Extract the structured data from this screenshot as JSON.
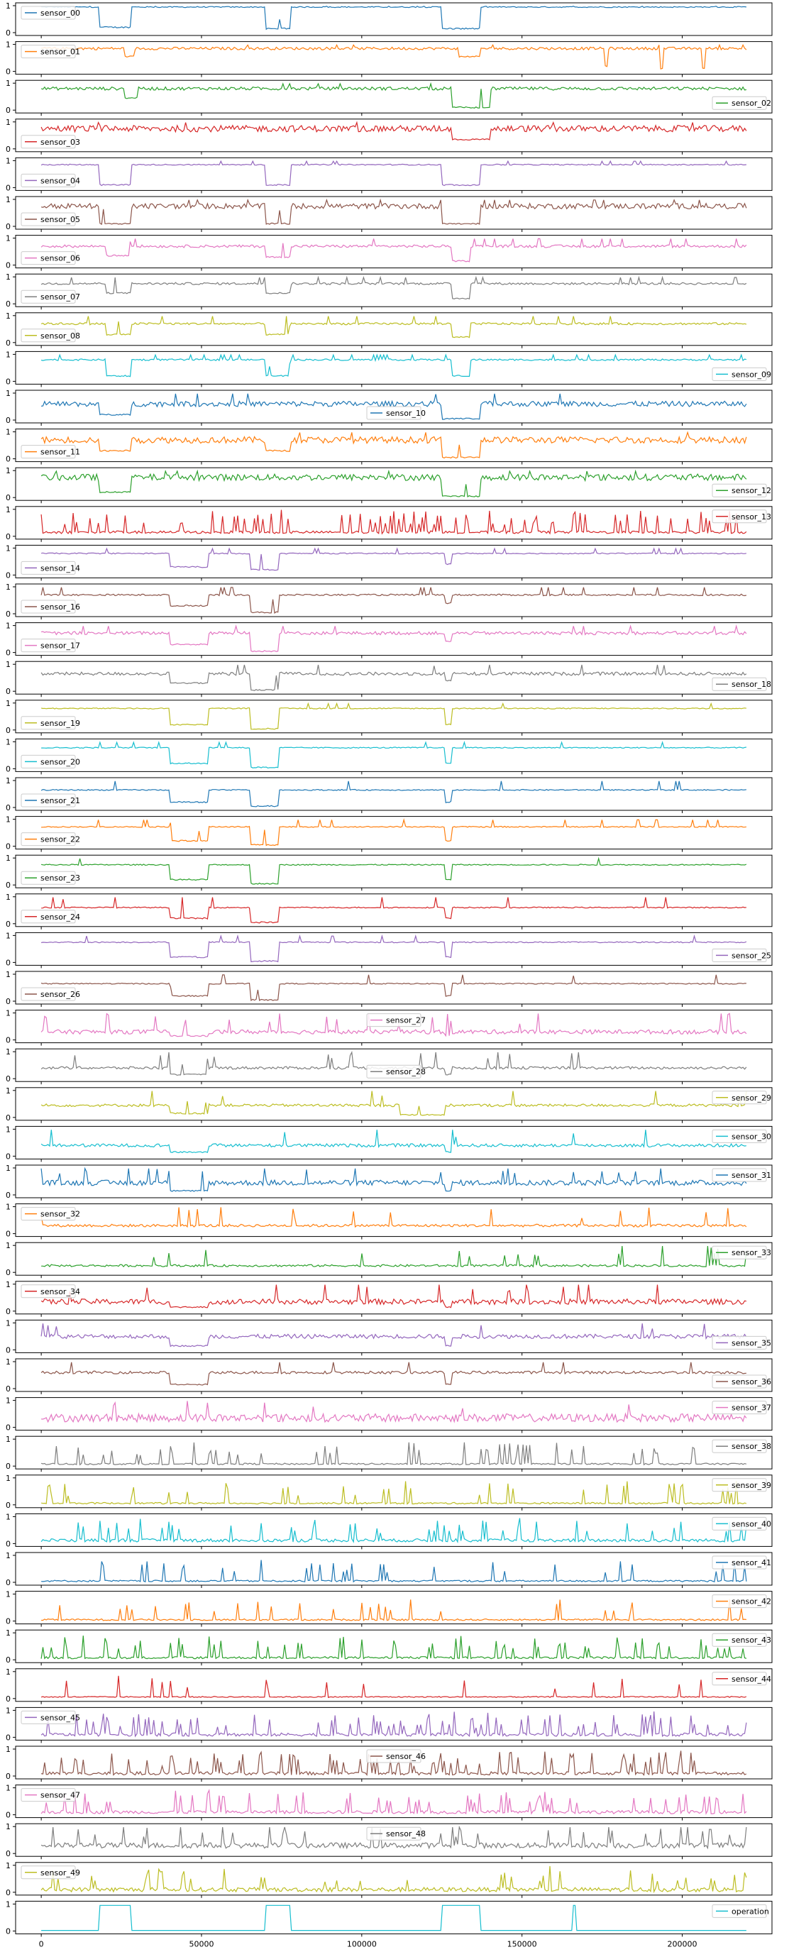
{
  "chart_data": {
    "type": "line",
    "layout": "stacked-subplots",
    "x_ticks": [
      0,
      50000,
      100000,
      150000,
      200000
    ],
    "x_tick_labels": [
      "0",
      "50000",
      "100000",
      "150000",
      "200000"
    ],
    "xlim": [
      -8000,
      228000
    ],
    "ylim": [
      0,
      1
    ],
    "y_ticks": [
      0,
      1
    ],
    "y_tick_labels": [
      "0",
      "1"
    ],
    "grid": false,
    "series": [
      {
        "name": "sensor_00",
        "color": "#1f77b4",
        "legend": "upper-left",
        "base": 0.95,
        "noise": 0.02,
        "level": 0.55,
        "dips": [
          [
            18000,
            28000,
            0.2
          ],
          [
            70000,
            78000,
            0.15
          ],
          [
            125000,
            137000,
            0.15
          ]
        ],
        "spikes": 0.003
      },
      {
        "name": "sensor_01",
        "color": "#ff7f0e",
        "legend": "upper-left",
        "base": 0.85,
        "noise": 0.05,
        "level": 0.5,
        "dips": [
          [
            26000,
            29000,
            0.55
          ],
          [
            130000,
            137000,
            0.55
          ],
          [
            176000,
            177000,
            0.2
          ],
          [
            193000,
            194000,
            0.1
          ],
          [
            206000,
            207000,
            0.1
          ]
        ],
        "spikes": 0.004
      },
      {
        "name": "sensor_02",
        "color": "#2ca02c",
        "legend": "lower-right",
        "base": 0.8,
        "noise": 0.06,
        "level": 0.5,
        "dips": [
          [
            26000,
            30000,
            0.45
          ],
          [
            128000,
            140000,
            0.1
          ]
        ],
        "spikes": 0.002
      },
      {
        "name": "sensor_03",
        "color": "#d62728",
        "legend": "lower-left",
        "base": 0.75,
        "noise": 0.12,
        "level": 0.5,
        "dips": [
          [
            128000,
            140000,
            0.35
          ]
        ],
        "spikes": 0.002
      },
      {
        "name": "sensor_04",
        "color": "#9467bd",
        "legend": "lower-left",
        "base": 0.85,
        "noise": 0.02,
        "level": 0.5,
        "dips": [
          [
            18000,
            28000,
            0.1
          ],
          [
            70000,
            78000,
            0.1
          ],
          [
            125000,
            137000,
            0.1
          ]
        ],
        "spikes": 0.004
      },
      {
        "name": "sensor_05",
        "color": "#8c564b",
        "legend": "lower-left",
        "base": 0.75,
        "noise": 0.1,
        "level": 0.5,
        "dips": [
          [
            18000,
            28000,
            0.1
          ],
          [
            70000,
            78000,
            0.1
          ],
          [
            125000,
            137000,
            0.1
          ]
        ],
        "spikes": 0.004
      },
      {
        "name": "sensor_06",
        "color": "#e377c2",
        "legend": "lower-left",
        "base": 0.7,
        "noise": 0.05,
        "level": 0.5,
        "dips": [
          [
            20000,
            28000,
            0.35
          ],
          [
            70000,
            78000,
            0.3
          ],
          [
            128000,
            134000,
            0.15
          ]
        ],
        "spikes": 0.004
      },
      {
        "name": "sensor_07",
        "color": "#7f7f7f",
        "legend": "lower-left",
        "base": 0.75,
        "noise": 0.04,
        "level": 0.5,
        "dips": [
          [
            20000,
            28000,
            0.4
          ],
          [
            70000,
            78000,
            0.4
          ],
          [
            128000,
            134000,
            0.2
          ]
        ],
        "spikes": 0.004
      },
      {
        "name": "sensor_08",
        "color": "#bcbd22",
        "legend": "lower-left",
        "base": 0.7,
        "noise": 0.04,
        "level": 0.5,
        "dips": [
          [
            20000,
            28000,
            0.3
          ],
          [
            70000,
            78000,
            0.3
          ],
          [
            128000,
            134000,
            0.2
          ]
        ],
        "spikes": 0.004
      },
      {
        "name": "sensor_09",
        "color": "#17becf",
        "legend": "lower-right",
        "base": 0.8,
        "noise": 0.03,
        "level": 0.5,
        "dips": [
          [
            20000,
            28000,
            0.2
          ],
          [
            70000,
            78000,
            0.2
          ],
          [
            128000,
            134000,
            0.2
          ]
        ],
        "spikes": 0.006
      },
      {
        "name": "sensor_10",
        "color": "#1f77b4",
        "legend": "lower-center",
        "base": 0.6,
        "noise": 0.1,
        "level": 0.5,
        "dips": [
          [
            18000,
            28000,
            0.2
          ],
          [
            125000,
            137000,
            0.05
          ]
        ],
        "spikes": 0.002
      },
      {
        "name": "sensor_11",
        "color": "#ff7f0e",
        "legend": "lower-left",
        "base": 0.7,
        "noise": 0.12,
        "level": 0.5,
        "dips": [
          [
            18000,
            28000,
            0.3
          ],
          [
            70000,
            78000,
            0.3
          ],
          [
            125000,
            137000,
            0.05
          ]
        ],
        "spikes": 0.002
      },
      {
        "name": "sensor_12",
        "color": "#2ca02c",
        "legend": "lower-right",
        "base": 0.75,
        "noise": 0.12,
        "level": 0.5,
        "dips": [
          [
            18000,
            28000,
            0.2
          ],
          [
            125000,
            137000,
            0.05
          ]
        ],
        "spikes": 0.002
      },
      {
        "name": "sensor_13",
        "color": "#d62728",
        "legend": "upper-right",
        "base": 0.15,
        "noise": 0.05,
        "level": 0.5,
        "dips": [],
        "spikes": 0.02
      },
      {
        "name": "sensor_14",
        "color": "#9467bd",
        "legend": "lower-left",
        "base": 0.8,
        "noise": 0.02,
        "level": 0.5,
        "dips": [
          [
            40000,
            52000,
            0.3
          ],
          [
            65000,
            74000,
            0.2
          ],
          [
            126000,
            128000,
            0.4
          ]
        ],
        "spikes": 0.003
      },
      {
        "name": "sensor_16",
        "color": "#8c564b",
        "legend": "lower-left",
        "base": 0.7,
        "noise": 0.03,
        "level": 0.5,
        "dips": [
          [
            40000,
            52000,
            0.3
          ],
          [
            65000,
            74000,
            0.05
          ],
          [
            126000,
            128000,
            0.4
          ]
        ],
        "spikes": 0.004
      },
      {
        "name": "sensor_17",
        "color": "#e377c2",
        "legend": "lower-left",
        "base": 0.72,
        "noise": 0.06,
        "level": 0.5,
        "dips": [
          [
            40000,
            52000,
            0.3
          ],
          [
            65000,
            74000,
            0.05
          ],
          [
            126000,
            128000,
            0.4
          ]
        ],
        "spikes": 0.004
      },
      {
        "name": "sensor_18",
        "color": "#7f7f7f",
        "legend": "lower-right",
        "base": 0.65,
        "noise": 0.06,
        "level": 0.5,
        "dips": [
          [
            40000,
            52000,
            0.3
          ],
          [
            65000,
            74000,
            0.05
          ],
          [
            126000,
            128000,
            0.4
          ]
        ],
        "spikes": 0.004
      },
      {
        "name": "sensor_19",
        "color": "#bcbd22",
        "legend": "lower-left",
        "base": 0.8,
        "noise": 0.02,
        "level": 0.5,
        "dips": [
          [
            40000,
            52000,
            0.2
          ],
          [
            65000,
            74000,
            0.05
          ],
          [
            126000,
            128000,
            0.2
          ]
        ],
        "spikes": 0.002
      },
      {
        "name": "sensor_20",
        "color": "#17becf",
        "legend": "lower-left",
        "base": 0.78,
        "noise": 0.02,
        "level": 0.5,
        "dips": [
          [
            40000,
            52000,
            0.2
          ],
          [
            65000,
            74000,
            0.05
          ],
          [
            126000,
            128000,
            0.2
          ]
        ],
        "spikes": 0.003
      },
      {
        "name": "sensor_21",
        "color": "#1f77b4",
        "legend": "lower-left",
        "base": 0.65,
        "noise": 0.02,
        "level": 0.5,
        "dips": [
          [
            40000,
            52000,
            0.2
          ],
          [
            65000,
            74000,
            0.05
          ],
          [
            126000,
            128000,
            0.2
          ]
        ],
        "spikes": 0.003
      },
      {
        "name": "sensor_22",
        "color": "#ff7f0e",
        "legend": "lower-left",
        "base": 0.72,
        "noise": 0.02,
        "level": 0.5,
        "dips": [
          [
            40000,
            52000,
            0.2
          ],
          [
            65000,
            74000,
            0.05
          ],
          [
            126000,
            128000,
            0.2
          ]
        ],
        "spikes": 0.003
      },
      {
        "name": "sensor_23",
        "color": "#2ca02c",
        "legend": "lower-left",
        "base": 0.75,
        "noise": 0.02,
        "level": 0.5,
        "dips": [
          [
            40000,
            52000,
            0.2
          ],
          [
            65000,
            74000,
            0.05
          ],
          [
            126000,
            128000,
            0.2
          ]
        ],
        "spikes": 0.003
      },
      {
        "name": "sensor_24",
        "color": "#d62728",
        "legend": "lower-left",
        "base": 0.6,
        "noise": 0.02,
        "level": 0.5,
        "dips": [
          [
            40000,
            52000,
            0.2
          ],
          [
            65000,
            74000,
            0.05
          ],
          [
            126000,
            128000,
            0.2
          ]
        ],
        "spikes": 0.003
      },
      {
        "name": "sensor_25",
        "color": "#9467bd",
        "legend": "lower-right",
        "base": 0.75,
        "noise": 0.02,
        "level": 0.5,
        "dips": [
          [
            40000,
            52000,
            0.2
          ],
          [
            65000,
            74000,
            0.05
          ],
          [
            126000,
            128000,
            0.2
          ]
        ],
        "spikes": 0.003
      },
      {
        "name": "sensor_26",
        "color": "#8c564b",
        "legend": "lower-left",
        "base": 0.65,
        "noise": 0.02,
        "level": 0.5,
        "dips": [
          [
            40000,
            52000,
            0.2
          ],
          [
            65000,
            74000,
            0.05
          ],
          [
            126000,
            128000,
            0.2
          ]
        ],
        "spikes": 0.003
      },
      {
        "name": "sensor_27",
        "color": "#e377c2",
        "legend": "upper-center",
        "base": 0.3,
        "noise": 0.08,
        "level": 0.5,
        "dips": [
          [
            40000,
            52000,
            0.15
          ],
          [
            126000,
            128000,
            0.15
          ]
        ],
        "spikes": 0.005
      },
      {
        "name": "sensor_28",
        "color": "#7f7f7f",
        "legend": "lower-center",
        "base": 0.4,
        "noise": 0.05,
        "level": 0.5,
        "dips": [
          [
            40000,
            52000,
            0.15
          ],
          [
            126000,
            128000,
            0.15
          ]
        ],
        "spikes": 0.005
      },
      {
        "name": "sensor_29",
        "color": "#bcbd22",
        "legend": "upper-right",
        "base": 0.45,
        "noise": 0.05,
        "level": 0.5,
        "dips": [
          [
            40000,
            52000,
            0.15
          ],
          [
            112000,
            126000,
            0.1
          ]
        ],
        "spikes": 0.004
      },
      {
        "name": "sensor_30",
        "color": "#17becf",
        "legend": "upper-right",
        "base": 0.4,
        "noise": 0.06,
        "level": 0.5,
        "dips": [
          [
            40000,
            52000,
            0.15
          ],
          [
            126000,
            128000,
            0.15
          ]
        ],
        "spikes": 0.004
      },
      {
        "name": "sensor_31",
        "color": "#1f77b4",
        "legend": "upper-right",
        "base": 0.45,
        "noise": 0.1,
        "level": 0.5,
        "dips": [
          [
            40000,
            52000,
            0.15
          ],
          [
            126000,
            128000,
            0.15
          ]
        ],
        "spikes": 0.004
      },
      {
        "name": "sensor_32",
        "color": "#ff7f0e",
        "legend": "upper-left",
        "base": 0.3,
        "noise": 0.05,
        "level": 0.5,
        "dips": [],
        "spikes": 0.004
      },
      {
        "name": "sensor_33",
        "color": "#2ca02c",
        "legend": "upper-right",
        "base": 0.25,
        "noise": 0.04,
        "level": 0.5,
        "dips": [],
        "spikes": 0.004
      },
      {
        "name": "sensor_34",
        "color": "#d62728",
        "legend": "upper-left",
        "base": 0.35,
        "noise": 0.1,
        "level": 0.5,
        "dips": [
          [
            40000,
            52000,
            0.15
          ],
          [
            126000,
            128000,
            0.15
          ]
        ],
        "spikes": 0.003
      },
      {
        "name": "sensor_35",
        "color": "#9467bd",
        "legend": "lower-right",
        "base": 0.5,
        "noise": 0.08,
        "level": 0.5,
        "dips": [
          [
            40000,
            52000,
            0.15
          ],
          [
            126000,
            128000,
            0.15
          ]
        ],
        "spikes": 0.003
      },
      {
        "name": "sensor_36",
        "color": "#8c564b",
        "legend": "lower-right",
        "base": 0.6,
        "noise": 0.05,
        "level": 0.5,
        "dips": [
          [
            40000,
            52000,
            0.15
          ],
          [
            126000,
            128000,
            0.15
          ]
        ],
        "spikes": 0.003
      },
      {
        "name": "sensor_37",
        "color": "#e377c2",
        "legend": "upper-right",
        "base": 0.35,
        "noise": 0.15,
        "level": 0.5,
        "dips": [],
        "spikes": 0.002
      },
      {
        "name": "sensor_38",
        "color": "#7f7f7f",
        "legend": "upper-right",
        "base": 0.08,
        "noise": 0.03,
        "level": 0.5,
        "dips": [],
        "spikes": 0.01
      },
      {
        "name": "sensor_39",
        "color": "#bcbd22",
        "legend": "upper-right",
        "base": 0.06,
        "noise": 0.03,
        "level": 0.5,
        "dips": [],
        "spikes": 0.01
      },
      {
        "name": "sensor_40",
        "color": "#17becf",
        "legend": "upper-right",
        "base": 0.12,
        "noise": 0.06,
        "level": 0.5,
        "dips": [],
        "spikes": 0.015
      },
      {
        "name": "sensor_41",
        "color": "#1f77b4",
        "legend": "upper-right",
        "base": 0.05,
        "noise": 0.03,
        "level": 0.5,
        "dips": [],
        "spikes": 0.01
      },
      {
        "name": "sensor_42",
        "color": "#ff7f0e",
        "legend": "upper-right",
        "base": 0.05,
        "noise": 0.03,
        "level": 0.5,
        "dips": [],
        "spikes": 0.01
      },
      {
        "name": "sensor_43",
        "color": "#2ca02c",
        "legend": "upper-right",
        "base": 0.08,
        "noise": 0.04,
        "level": 0.5,
        "dips": [],
        "spikes": 0.015
      },
      {
        "name": "sensor_44",
        "color": "#d62728",
        "legend": "upper-right",
        "base": 0.06,
        "noise": 0.02,
        "level": 0.5,
        "dips": [],
        "spikes": 0.005
      },
      {
        "name": "sensor_45",
        "color": "#9467bd",
        "legend": "upper-left",
        "base": 0.1,
        "noise": 0.06,
        "level": 0.5,
        "dips": [],
        "spikes": 0.02
      },
      {
        "name": "sensor_46",
        "color": "#8c564b",
        "legend": "upper-center",
        "base": 0.1,
        "noise": 0.06,
        "level": 0.5,
        "dips": [],
        "spikes": 0.02
      },
      {
        "name": "sensor_47",
        "color": "#e377c2",
        "legend": "upper-left",
        "base": 0.1,
        "noise": 0.06,
        "level": 0.5,
        "dips": [],
        "spikes": 0.02
      },
      {
        "name": "sensor_48",
        "color": "#7f7f7f",
        "legend": "upper-center",
        "base": 0.3,
        "noise": 0.1,
        "level": 0.5,
        "dips": [],
        "spikes": 0.01
      },
      {
        "name": "sensor_49",
        "color": "#bcbd22",
        "legend": "upper-left",
        "base": 0.1,
        "noise": 0.08,
        "level": 0.5,
        "dips": [],
        "spikes": 0.01
      },
      {
        "name": "operation",
        "color": "#17becf",
        "legend": "upper-right",
        "base": 0.02,
        "noise": 0.0,
        "level": 0.5,
        "dips": [],
        "spikes": 0.0,
        "highs": [
          [
            18000,
            28000,
            0.95
          ],
          [
            70000,
            78000,
            0.95
          ],
          [
            125000,
            137000,
            0.95
          ],
          [
            166000,
            167000,
            0.95
          ]
        ]
      }
    ]
  }
}
